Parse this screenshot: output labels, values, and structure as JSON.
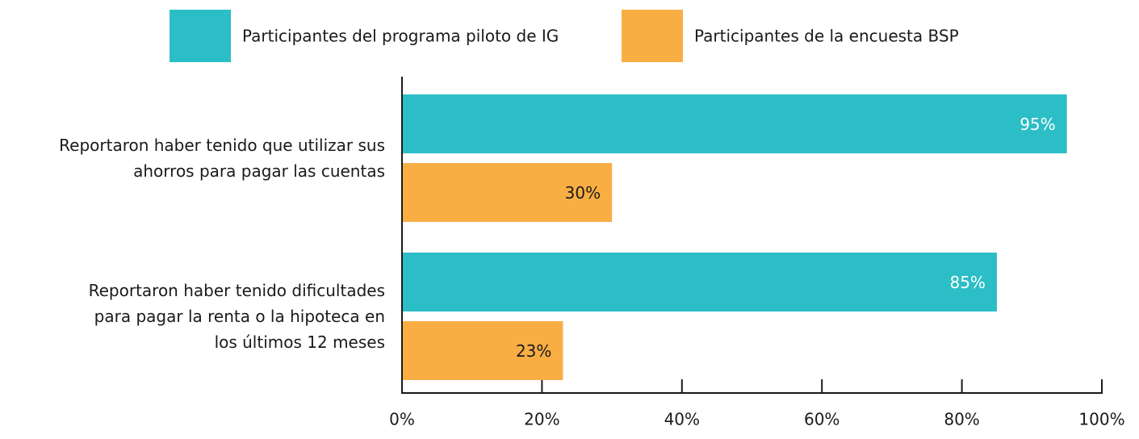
{
  "chart_data": {
    "type": "bar",
    "orientation": "horizontal",
    "categories": [
      "Reportaron haber tenido que utilizar sus\nahorros para pagar las cuentas",
      "Reportaron haber tenido dificultades\npara pagar la renta o la hipoteca en\nlos últimos 12 meses"
    ],
    "series": [
      {
        "name": "Participantes del programa piloto de IG",
        "color": "#2bbec6",
        "label_color": "#ffffff",
        "values": [
          95,
          85
        ],
        "value_labels": [
          "95%",
          "85%"
        ]
      },
      {
        "name": "Participantes de la encuesta BSP",
        "color": "#f9ae44",
        "label_color": "#1a1a1a",
        "values": [
          30,
          23
        ],
        "value_labels": [
          "30%",
          "23%"
        ]
      }
    ],
    "xlim": [
      0,
      100
    ],
    "xticks": [
      {
        "value": 0,
        "label": "0%"
      },
      {
        "value": 20,
        "label": "20%"
      },
      {
        "value": 40,
        "label": "40%"
      },
      {
        "value": 60,
        "label": "60%"
      },
      {
        "value": 80,
        "label": "80%"
      },
      {
        "value": 100,
        "label": "100%"
      }
    ],
    "legend": "top"
  }
}
